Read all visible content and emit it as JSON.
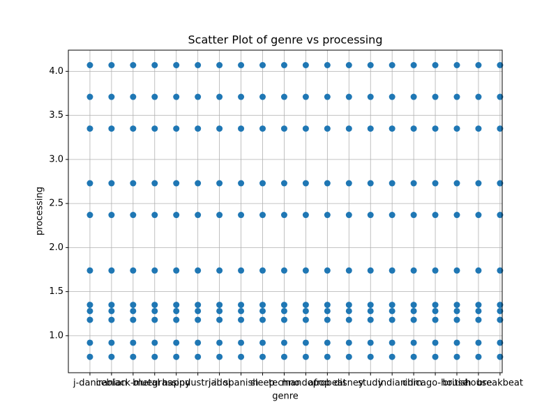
{
  "chart_data": {
    "type": "scatter",
    "title": "Scatter Plot of genre vs processing",
    "x_label": "genre",
    "y_label": "processing",
    "categories": [
      "j-dance",
      "iranian",
      "black-metal",
      "bluegrass",
      "happy",
      "industrial",
      "j-idol",
      "spanish",
      "sleep",
      "techno",
      "mandopop",
      "afrobeat",
      "disney",
      "study",
      "indian",
      "idm",
      "chicago-house",
      "british",
      "house",
      "breakbeat"
    ],
    "values": [
      [
        0.76,
        0.92,
        1.18,
        1.28,
        1.35,
        1.74,
        2.37,
        2.73,
        3.35,
        3.71,
        4.07
      ],
      [
        0.76,
        0.92,
        1.18,
        1.28,
        1.35,
        1.74,
        2.37,
        2.73,
        3.35,
        3.71,
        4.07
      ],
      [
        0.76,
        0.92,
        1.18,
        1.28,
        1.35,
        1.74,
        2.37,
        2.73,
        3.35,
        3.71,
        4.07
      ],
      [
        0.76,
        0.92,
        1.18,
        1.28,
        1.35,
        1.74,
        2.37,
        2.73,
        3.35,
        3.71,
        4.07
      ],
      [
        0.76,
        0.92,
        1.18,
        1.28,
        1.35,
        1.74,
        2.37,
        2.73,
        3.35,
        3.71,
        4.07
      ],
      [
        0.76,
        0.92,
        1.18,
        1.28,
        1.35,
        1.74,
        2.37,
        2.73,
        3.35,
        3.71,
        4.07
      ],
      [
        0.76,
        0.92,
        1.18,
        1.28,
        1.35,
        1.74,
        2.37,
        2.73,
        3.35,
        3.71,
        4.07
      ],
      [
        0.76,
        0.92,
        1.18,
        1.28,
        1.35,
        1.74,
        2.37,
        2.73,
        3.35,
        3.71,
        4.07
      ],
      [
        0.76,
        0.92,
        1.18,
        1.28,
        1.35,
        1.74,
        2.37,
        2.73,
        3.35,
        3.71,
        4.07
      ],
      [
        0.76,
        0.92,
        1.18,
        1.28,
        1.35,
        1.74,
        2.37,
        2.73,
        3.35,
        3.71,
        4.07
      ],
      [
        0.76,
        0.92,
        1.18,
        1.28,
        1.35,
        1.74,
        2.37,
        2.73,
        3.35,
        3.71,
        4.07
      ],
      [
        0.76,
        0.92,
        1.18,
        1.28,
        1.35,
        1.74,
        2.37,
        2.73,
        3.35,
        3.71,
        4.07
      ],
      [
        0.76,
        0.92,
        1.18,
        1.28,
        1.35,
        1.74,
        2.37,
        2.73,
        3.35,
        3.71,
        4.07
      ],
      [
        0.76,
        0.92,
        1.18,
        1.28,
        1.35,
        1.74,
        2.37,
        2.73,
        3.35,
        3.71,
        4.07
      ],
      [
        0.76,
        0.92,
        1.18,
        1.28,
        1.35,
        1.74,
        2.37,
        2.73,
        3.35,
        3.71,
        4.07
      ],
      [
        0.76,
        0.92,
        1.18,
        1.28,
        1.35,
        1.74,
        2.37,
        2.73,
        3.35,
        3.71,
        4.07
      ],
      [
        0.76,
        0.92,
        1.18,
        1.28,
        1.35,
        1.74,
        2.37,
        2.73,
        3.35,
        3.71,
        4.07
      ],
      [
        0.76,
        0.92,
        1.18,
        1.28,
        1.35,
        1.74,
        2.37,
        2.73,
        3.35,
        3.71,
        4.07
      ],
      [
        0.76,
        0.92,
        1.18,
        1.28,
        1.35,
        1.74,
        2.37,
        2.73,
        3.35,
        3.71,
        4.07
      ],
      [
        0.76,
        0.92,
        1.18,
        1.28,
        1.35,
        1.74,
        2.37,
        2.73,
        3.35,
        3.71,
        4.07
      ]
    ],
    "color": "#1f77b4",
    "ylim": [
      0.58,
      4.24
    ],
    "yticks": [
      {
        "value": 1,
        "label": "1.0"
      },
      {
        "value": 1.5,
        "label": "1.5"
      },
      {
        "value": 2,
        "label": "2.0"
      },
      {
        "value": 2.5,
        "label": "2.5"
      },
      {
        "value": 3,
        "label": "3.0"
      },
      {
        "value": 3.5,
        "label": "3.5"
      },
      {
        "value": 4,
        "label": "4.0"
      }
    ],
    "grid": true
  }
}
